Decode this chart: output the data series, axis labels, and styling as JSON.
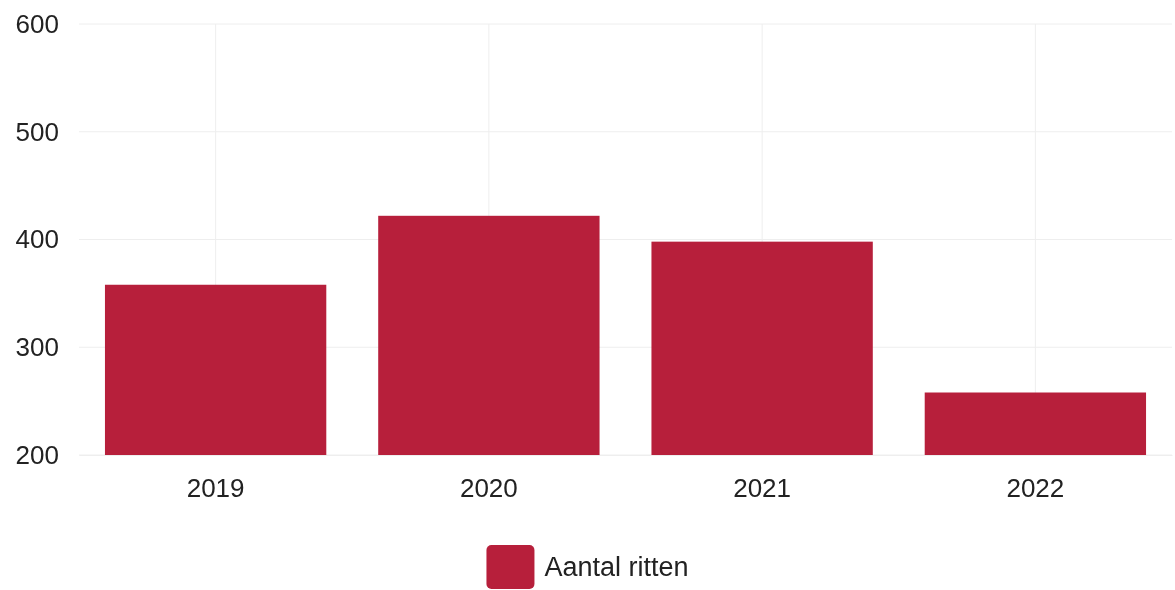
{
  "chart_data": {
    "type": "bar",
    "categories": [
      "2019",
      "2020",
      "2021",
      "2022"
    ],
    "series": [
      {
        "name": "Aantal ritten",
        "color": "#b71f3b",
        "values": [
          358,
          422,
          398,
          258
        ]
      }
    ],
    "ylim": [
      200,
      600
    ],
    "yticks": [
      200,
      300,
      400,
      500,
      600
    ],
    "grid": true,
    "legend": "bottom"
  }
}
